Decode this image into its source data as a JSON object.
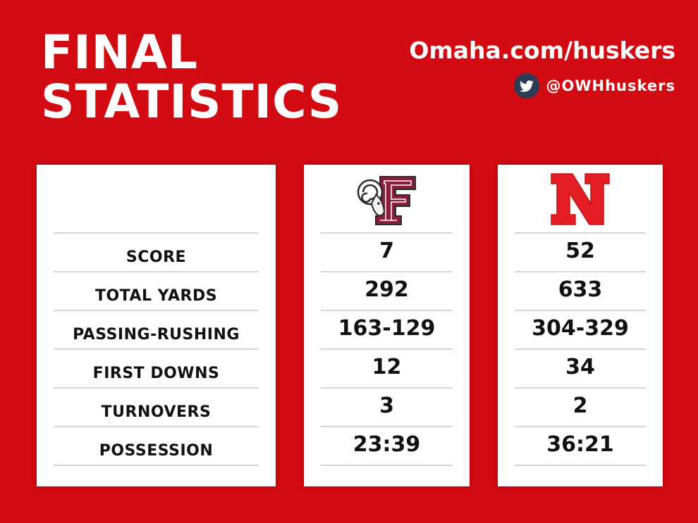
{
  "header": {
    "title_line1": "FINAL",
    "title_line2": "STATISTICS",
    "website": "Omaha.com/huskers",
    "twitter_handle": "@OWHhuskers"
  },
  "icons": {
    "social": "twitter-bird-icon",
    "team1_logo": "fordham-rams-logo",
    "team2_logo": "nebraska-n-logo"
  },
  "colors": {
    "background": "#d20a11",
    "fordham_maroon": "#8a1d3a",
    "nebraska_red": "#e41c24"
  },
  "stats": {
    "labels": [
      "SCORE",
      "TOTAL YARDS",
      "PASSING-RUSHING",
      "FIRST DOWNS",
      "TURNOVERS",
      "POSSESSION"
    ],
    "team1": [
      "7",
      "292",
      "163-129",
      "12",
      "3",
      "23:39"
    ],
    "team2": [
      "52",
      "633",
      "304-329",
      "34",
      "2",
      "36:21"
    ]
  }
}
